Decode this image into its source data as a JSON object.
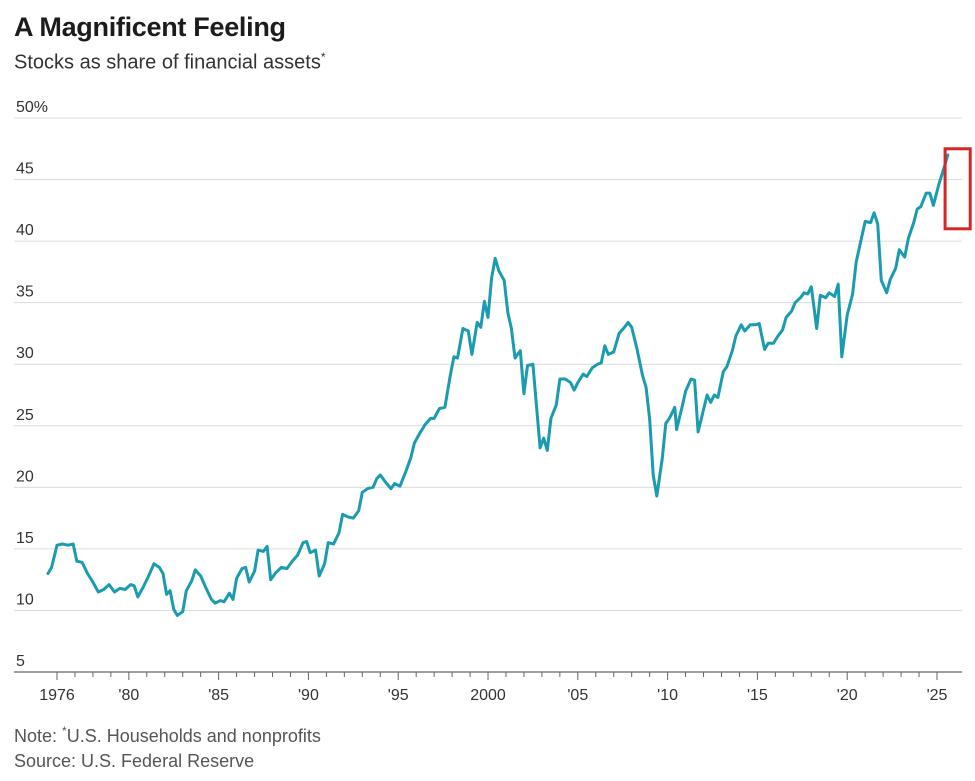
{
  "chart_data": {
    "type": "line",
    "title": "A Magnificent Feeling",
    "subtitle": "Stocks as share of financial assets",
    "subtitle_mark": "*",
    "ylabel": "",
    "xlabel": "",
    "ylim": [
      5,
      50
    ],
    "xlim": [
      1975.5,
      2025.9
    ],
    "yticks": [
      5,
      10,
      15,
      20,
      25,
      30,
      35,
      40,
      45,
      50
    ],
    "ytick_labels": [
      "5",
      "10",
      "15",
      "20",
      "25",
      "30",
      "35",
      "40",
      "45",
      "50%"
    ],
    "xticks": [
      1976,
      1980,
      1985,
      1990,
      1995,
      2000,
      2005,
      2010,
      2015,
      2020,
      2025
    ],
    "xtick_labels": [
      "1976",
      "'80",
      "'85",
      "'90",
      "'95",
      "2000",
      "'05",
      "'10",
      "'15",
      "'20",
      "'25"
    ],
    "grid": "horizontal",
    "line_color": "#1a9bb0",
    "highlight": {
      "x0": 2025.45,
      "x1": 2026.85,
      "y0": 41,
      "y1": 47.5,
      "color": "#d62728"
    },
    "series": [
      {
        "name": "",
        "points": [
          [
            1975.5,
            13.0
          ],
          [
            1975.7,
            13.5
          ],
          [
            1976.0,
            15.3
          ],
          [
            1976.3,
            15.4
          ],
          [
            1976.6,
            15.3
          ],
          [
            1976.9,
            15.4
          ],
          [
            1977.1,
            14.0
          ],
          [
            1977.4,
            13.9
          ],
          [
            1977.7,
            13.0
          ],
          [
            1978.0,
            12.3
          ],
          [
            1978.3,
            11.5
          ],
          [
            1978.6,
            11.7
          ],
          [
            1978.9,
            12.1
          ],
          [
            1979.2,
            11.5
          ],
          [
            1979.5,
            11.8
          ],
          [
            1979.8,
            11.7
          ],
          [
            1980.1,
            12.1
          ],
          [
            1980.3,
            12.0
          ],
          [
            1980.5,
            11.1
          ],
          [
            1980.8,
            11.9
          ],
          [
            1981.1,
            12.8
          ],
          [
            1981.4,
            13.8
          ],
          [
            1981.7,
            13.5
          ],
          [
            1981.9,
            13.0
          ],
          [
            1982.1,
            11.3
          ],
          [
            1982.3,
            11.6
          ],
          [
            1982.5,
            10.1
          ],
          [
            1982.7,
            9.6
          ],
          [
            1983.0,
            9.9
          ],
          [
            1983.2,
            11.6
          ],
          [
            1983.5,
            12.4
          ],
          [
            1983.7,
            13.3
          ],
          [
            1984.0,
            12.8
          ],
          [
            1984.3,
            11.8
          ],
          [
            1984.6,
            10.9
          ],
          [
            1984.8,
            10.6
          ],
          [
            1985.1,
            10.8
          ],
          [
            1985.3,
            10.7
          ],
          [
            1985.6,
            11.4
          ],
          [
            1985.8,
            10.9
          ],
          [
            1986.0,
            12.6
          ],
          [
            1986.3,
            13.4
          ],
          [
            1986.5,
            13.5
          ],
          [
            1986.7,
            12.3
          ],
          [
            1987.0,
            13.2
          ],
          [
            1987.2,
            14.9
          ],
          [
            1987.5,
            14.8
          ],
          [
            1987.7,
            15.2
          ],
          [
            1987.9,
            12.5
          ],
          [
            1988.2,
            13.1
          ],
          [
            1988.5,
            13.5
          ],
          [
            1988.8,
            13.4
          ],
          [
            1989.1,
            14.0
          ],
          [
            1989.4,
            14.5
          ],
          [
            1989.7,
            15.5
          ],
          [
            1989.9,
            15.6
          ],
          [
            1990.1,
            14.7
          ],
          [
            1990.4,
            14.9
          ],
          [
            1990.6,
            12.8
          ],
          [
            1990.9,
            13.8
          ],
          [
            1991.1,
            15.5
          ],
          [
            1991.4,
            15.4
          ],
          [
            1991.7,
            16.3
          ],
          [
            1991.9,
            17.8
          ],
          [
            1992.2,
            17.6
          ],
          [
            1992.5,
            17.5
          ],
          [
            1992.8,
            18.1
          ],
          [
            1993.0,
            19.6
          ],
          [
            1993.3,
            19.9
          ],
          [
            1993.6,
            20.0
          ],
          [
            1993.8,
            20.7
          ],
          [
            1994.0,
            21.0
          ],
          [
            1994.3,
            20.4
          ],
          [
            1994.6,
            19.9
          ],
          [
            1994.8,
            20.3
          ],
          [
            1995.1,
            20.1
          ],
          [
            1995.4,
            21.2
          ],
          [
            1995.7,
            22.4
          ],
          [
            1995.9,
            23.6
          ],
          [
            1996.2,
            24.4
          ],
          [
            1996.5,
            25.1
          ],
          [
            1996.8,
            25.6
          ],
          [
            1997.0,
            25.6
          ],
          [
            1997.3,
            26.4
          ],
          [
            1997.6,
            26.5
          ],
          [
            1997.9,
            29.1
          ],
          [
            1998.1,
            30.6
          ],
          [
            1998.3,
            30.5
          ],
          [
            1998.6,
            32.9
          ],
          [
            1998.9,
            32.7
          ],
          [
            1999.1,
            30.8
          ],
          [
            1999.4,
            33.4
          ],
          [
            1999.6,
            33.0
          ],
          [
            1999.8,
            35.1
          ],
          [
            2000.0,
            33.8
          ],
          [
            2000.2,
            37.0
          ],
          [
            2000.4,
            38.6
          ],
          [
            2000.6,
            37.6
          ],
          [
            2000.9,
            36.8
          ],
          [
            2001.1,
            34.2
          ],
          [
            2001.3,
            32.9
          ],
          [
            2001.5,
            30.5
          ],
          [
            2001.8,
            31.1
          ],
          [
            2002.0,
            27.6
          ],
          [
            2002.2,
            29.9
          ],
          [
            2002.5,
            30.0
          ],
          [
            2002.7,
            26.6
          ],
          [
            2002.9,
            23.2
          ],
          [
            2003.1,
            24.0
          ],
          [
            2003.3,
            23.0
          ],
          [
            2003.5,
            25.6
          ],
          [
            2003.8,
            26.7
          ],
          [
            2004.0,
            28.8
          ],
          [
            2004.3,
            28.8
          ],
          [
            2004.6,
            28.5
          ],
          [
            2004.8,
            27.9
          ],
          [
            2005.0,
            28.5
          ],
          [
            2005.3,
            29.2
          ],
          [
            2005.5,
            29.0
          ],
          [
            2005.8,
            29.7
          ],
          [
            2006.1,
            30.0
          ],
          [
            2006.3,
            30.1
          ],
          [
            2006.5,
            31.5
          ],
          [
            2006.7,
            30.8
          ],
          [
            2007.0,
            31.0
          ],
          [
            2007.3,
            32.5
          ],
          [
            2007.6,
            33.0
          ],
          [
            2007.8,
            33.4
          ],
          [
            2008.0,
            33.0
          ],
          [
            2008.3,
            31.2
          ],
          [
            2008.6,
            29.1
          ],
          [
            2008.8,
            28.1
          ],
          [
            2009.0,
            25.5
          ],
          [
            2009.2,
            21.0
          ],
          [
            2009.4,
            19.3
          ],
          [
            2009.7,
            22.3
          ],
          [
            2009.9,
            25.2
          ],
          [
            2010.1,
            25.6
          ],
          [
            2010.4,
            26.5
          ],
          [
            2010.5,
            24.7
          ],
          [
            2010.8,
            26.5
          ],
          [
            2011.0,
            27.8
          ],
          [
            2011.3,
            28.8
          ],
          [
            2011.5,
            28.7
          ],
          [
            2011.7,
            24.5
          ],
          [
            2011.9,
            25.7
          ],
          [
            2012.2,
            27.5
          ],
          [
            2012.4,
            26.9
          ],
          [
            2012.6,
            27.5
          ],
          [
            2012.8,
            27.3
          ],
          [
            2013.1,
            29.4
          ],
          [
            2013.3,
            29.8
          ],
          [
            2013.6,
            31.1
          ],
          [
            2013.8,
            32.3
          ],
          [
            2014.1,
            33.2
          ],
          [
            2014.3,
            32.7
          ],
          [
            2014.6,
            33.2
          ],
          [
            2014.9,
            33.2
          ],
          [
            2015.1,
            33.3
          ],
          [
            2015.4,
            31.2
          ],
          [
            2015.6,
            31.7
          ],
          [
            2015.9,
            31.7
          ],
          [
            2016.1,
            32.2
          ],
          [
            2016.4,
            32.8
          ],
          [
            2016.6,
            33.8
          ],
          [
            2016.9,
            34.3
          ],
          [
            2017.1,
            35.0
          ],
          [
            2017.4,
            35.4
          ],
          [
            2017.6,
            35.8
          ],
          [
            2017.8,
            35.7
          ],
          [
            2018.0,
            36.3
          ],
          [
            2018.3,
            32.9
          ],
          [
            2018.5,
            35.6
          ],
          [
            2018.8,
            35.4
          ],
          [
            2019.0,
            35.8
          ],
          [
            2019.3,
            35.5
          ],
          [
            2019.5,
            36.5
          ],
          [
            2019.7,
            30.6
          ],
          [
            2020.0,
            34.0
          ],
          [
            2020.3,
            35.7
          ],
          [
            2020.5,
            38.3
          ],
          [
            2020.8,
            40.3
          ],
          [
            2021.0,
            41.6
          ],
          [
            2021.3,
            41.5
          ],
          [
            2021.5,
            42.3
          ],
          [
            2021.7,
            41.4
          ],
          [
            2021.9,
            36.8
          ],
          [
            2022.2,
            35.8
          ],
          [
            2022.4,
            36.9
          ],
          [
            2022.7,
            37.8
          ],
          [
            2022.9,
            39.3
          ],
          [
            2023.2,
            38.7
          ],
          [
            2023.4,
            40.2
          ],
          [
            2023.7,
            41.5
          ],
          [
            2023.9,
            42.6
          ],
          [
            2024.1,
            42.8
          ],
          [
            2024.4,
            43.9
          ],
          [
            2024.6,
            43.9
          ],
          [
            2024.8,
            42.9
          ],
          [
            2025.1,
            44.6
          ],
          [
            2025.4,
            46.0
          ],
          [
            2025.6,
            47.0
          ]
        ]
      }
    ],
    "note_label": "Note: ",
    "note_mark": "*",
    "note_text": "U.S. Households and nonprofits",
    "source": "Source: U.S. Federal Reserve"
  }
}
